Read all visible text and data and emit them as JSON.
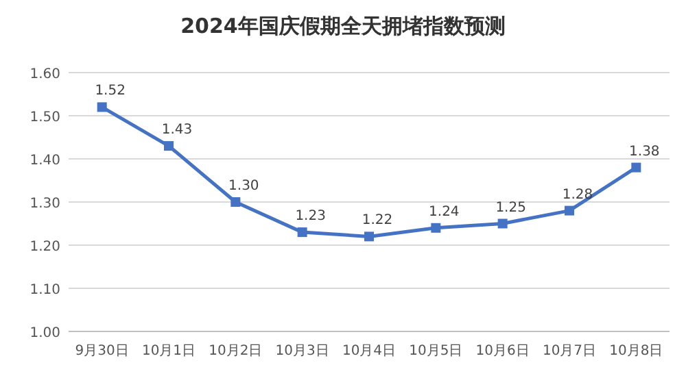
{
  "chart_data": {
    "type": "line",
    "title": "2024年国庆假期全天拥堵指数预测",
    "categories": [
      "9月30日",
      "10月1日",
      "10月2日",
      "10月3日",
      "10月4日",
      "10月5日",
      "10月6日",
      "10月7日",
      "10月8日"
    ],
    "series": [
      {
        "color": "#4472c4",
        "values": [
          1.52,
          1.43,
          1.3,
          1.23,
          1.22,
          1.24,
          1.25,
          1.28,
          1.38
        ],
        "value_labels": [
          "1.52",
          "1.43",
          "1.30",
          "1.23",
          "1.22",
          "1.24",
          "1.25",
          "1.28",
          "1.38"
        ]
      }
    ],
    "ylim": [
      1.0,
      1.6
    ],
    "yticks": [
      {
        "value": 1.0,
        "label": "1.00"
      },
      {
        "value": 1.1,
        "label": "1.10"
      },
      {
        "value": 1.2,
        "label": "1.20"
      },
      {
        "value": 1.3,
        "label": "1.30"
      },
      {
        "value": 1.4,
        "label": "1.40"
      },
      {
        "value": 1.5,
        "label": "1.50"
      },
      {
        "value": 1.6,
        "label": "1.60"
      }
    ],
    "grid": "y",
    "marker": "square",
    "line_style": "solid"
  }
}
